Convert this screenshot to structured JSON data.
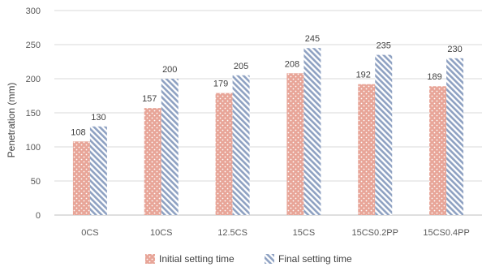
{
  "chart_data": {
    "type": "bar",
    "categories": [
      "0CS",
      "10CS",
      "12.5CS",
      "15CS",
      "15CS0.2PP",
      "15CS0.4PP"
    ],
    "series": [
      {
        "name": "Initial setting time",
        "values": [
          108,
          157,
          179,
          208,
          192,
          189
        ],
        "color": "#e8a598",
        "pattern": "dots"
      },
      {
        "name": "Final setting time",
        "values": [
          130,
          200,
          205,
          245,
          235,
          230
        ],
        "color": "#8ea1c2",
        "pattern": "diagonal-stripes"
      }
    ],
    "title": "",
    "xlabel": "",
    "ylabel": "Penetration (mm)",
    "ylim": [
      0,
      300
    ],
    "yticks": [
      0,
      50,
      100,
      150,
      200,
      250,
      300
    ],
    "grid": true,
    "legend_position": "bottom"
  }
}
